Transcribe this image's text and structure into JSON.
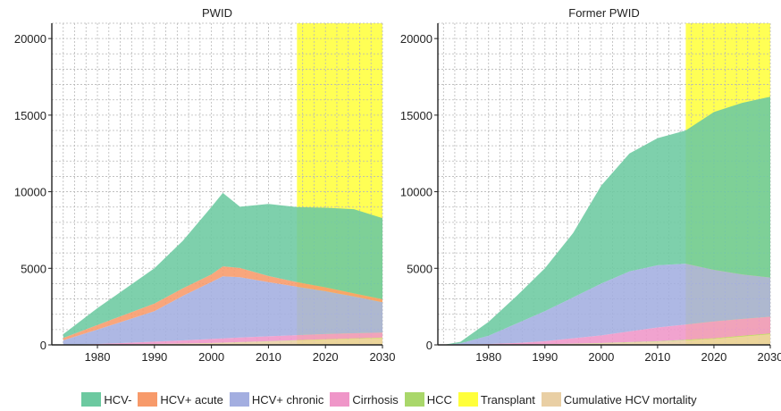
{
  "series_colors": {
    "HCV-": "#6cc9a0",
    "HCV+ acute": "#f79a6a",
    "HCV+ chronic": "#a3aee0",
    "Cirrhosis": "#ef96c8",
    "HCC": "#a9d76a",
    "Transplant": "#ffff3a",
    "Cumulative HCV mortality": "#e9cfa4"
  },
  "projection_shading": {
    "color": "#ffff55",
    "x_start": 2015,
    "x_end": 2030
  },
  "legend": [
    "HCV-",
    "HCV+ acute",
    "HCV+ chronic",
    "Cirrhosis",
    "HCC",
    "Transplant",
    "Cumulative HCV mortality"
  ],
  "chart_data": [
    {
      "type": "area",
      "stacked": true,
      "title": "PWID",
      "xlabel": "",
      "ylabel": "",
      "xlim": [
        1972,
        2030
      ],
      "ylim": [
        0,
        21000
      ],
      "x_ticks": [
        1980,
        1990,
        2000,
        2010,
        2020,
        2030
      ],
      "y_ticks": [
        0,
        5000,
        10000,
        15000,
        20000
      ],
      "grid": true,
      "x": [
        1974,
        1980,
        1985,
        1990,
        1995,
        2000,
        2002,
        2005,
        2010,
        2015,
        2020,
        2025,
        2030
      ],
      "series": [
        {
          "name": "Cumulative HCV mortality",
          "values": [
            0,
            10,
            30,
            60,
            90,
            120,
            140,
            170,
            230,
            290,
            350,
            400,
            450
          ]
        },
        {
          "name": "Transplant",
          "values": [
            0,
            0,
            0,
            0,
            0,
            0,
            0,
            0,
            0,
            0,
            0,
            0,
            0
          ]
        },
        {
          "name": "HCC",
          "values": [
            0,
            0,
            0,
            0,
            0,
            5,
            5,
            10,
            10,
            15,
            15,
            20,
            20
          ]
        },
        {
          "name": "Cirrhosis",
          "values": [
            0,
            50,
            100,
            150,
            200,
            260,
            280,
            300,
            320,
            330,
            340,
            340,
            330
          ]
        },
        {
          "name": "HCV+ chronic",
          "values": [
            300,
            940,
            1470,
            1990,
            2910,
            3720,
            4050,
            3940,
            3540,
            3160,
            2800,
            2400,
            1980
          ]
        },
        {
          "name": "HCV+ acute",
          "values": [
            150,
            300,
            400,
            500,
            500,
            500,
            650,
            600,
            400,
            300,
            250,
            200,
            200
          ]
        },
        {
          "name": "HCV-",
          "values": [
            250,
            1100,
            1700,
            2300,
            3100,
            4400,
            4800,
            4000,
            4700,
            4900,
            5200,
            5500,
            5300
          ]
        }
      ]
    },
    {
      "type": "area",
      "stacked": true,
      "title": "Former PWID",
      "xlabel": "",
      "ylabel": "",
      "xlim": [
        1971,
        2030
      ],
      "ylim": [
        0,
        21000
      ],
      "x_ticks": [
        1980,
        1990,
        2000,
        2010,
        2020,
        2030
      ],
      "y_ticks": [
        0,
        5000,
        10000,
        15000,
        20000
      ],
      "grid": true,
      "x": [
        1972,
        1975,
        1980,
        1985,
        1990,
        1995,
        2000,
        2005,
        2010,
        2015,
        2020,
        2025,
        2030
      ],
      "series": [
        {
          "name": "Cumulative HCV mortality",
          "values": [
            0,
            0,
            10,
            20,
            40,
            70,
            110,
            160,
            220,
            300,
            400,
            550,
            700
          ]
        },
        {
          "name": "Transplant",
          "values": [
            0,
            0,
            0,
            0,
            0,
            0,
            0,
            0,
            0,
            0,
            0,
            0,
            0
          ]
        },
        {
          "name": "HCC",
          "values": [
            0,
            0,
            0,
            0,
            0,
            10,
            10,
            20,
            20,
            30,
            30,
            40,
            40
          ]
        },
        {
          "name": "Cirrhosis",
          "values": [
            0,
            10,
            50,
            100,
            200,
            350,
            500,
            700,
            900,
            1000,
            1100,
            1100,
            1100
          ]
        },
        {
          "name": "HCV+ chronic",
          "values": [
            0,
            90,
            540,
            1280,
            1960,
            2670,
            3380,
            3920,
            4060,
            3970,
            3370,
            2910,
            2560
          ]
        },
        {
          "name": "HCV+ acute",
          "values": [
            0,
            0,
            0,
            0,
            0,
            0,
            0,
            0,
            0,
            0,
            0,
            0,
            0
          ]
        },
        {
          "name": "HCV-",
          "values": [
            0,
            100,
            900,
            1800,
            2800,
            4200,
            6400,
            7700,
            8300,
            8700,
            10300,
            11200,
            11800
          ]
        }
      ]
    }
  ]
}
